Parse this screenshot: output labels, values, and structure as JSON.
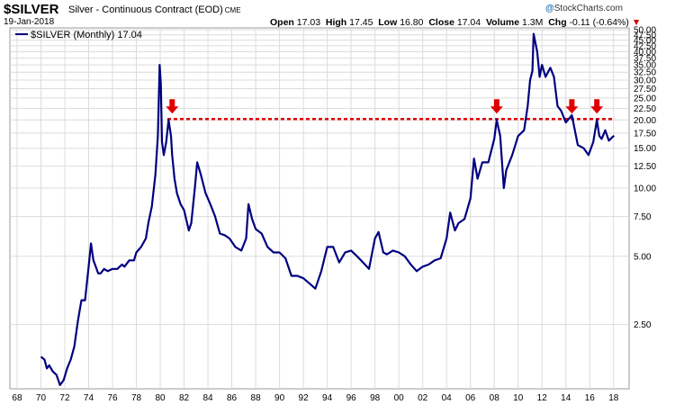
{
  "header": {
    "symbol": "$SILVER",
    "contract": "Silver - Continuous Contract (EOD)",
    "exchange": "CME",
    "date": "19-Jan-2018",
    "open_label": "Open",
    "open": "17.03",
    "high_label": "High",
    "high": "17.45",
    "low_label": "Low",
    "low": "16.80",
    "close_label": "Close",
    "close": "17.04",
    "volume_label": "Volume",
    "volume": "1.3M",
    "chg_label": "Chg",
    "chg": "-0.11 (-0.64%)",
    "brand_prefix": "@",
    "brand": "StockCharts.com",
    "chg_color": "#cc0000"
  },
  "chart_data": {
    "type": "line",
    "yscale": "log",
    "legend": "$SILVER (Monthly) 17.04",
    "legend_placement": "top-left",
    "x_ticks": [
      "68",
      "70",
      "72",
      "74",
      "76",
      "78",
      "80",
      "82",
      "84",
      "86",
      "88",
      "90",
      "92",
      "94",
      "96",
      "98",
      "00",
      "02",
      "04",
      "06",
      "08",
      "10",
      "12",
      "14",
      "16",
      "18"
    ],
    "x_range": [
      1967.4,
      2019.3
    ],
    "y_ticks": [
      "50.00",
      "47.50",
      "45.00",
      "42.50",
      "40.00",
      "37.50",
      "35.00",
      "32.50",
      "30.00",
      "27.50",
      "25.00",
      "22.50",
      "20.00",
      "17.50",
      "15.00",
      "12.50",
      "10.00",
      "7.50",
      "5.00",
      "2.50"
    ],
    "y_range": [
      1.3,
      51
    ],
    "grid": true,
    "series_color": "#000080",
    "resistance_level": 20.2,
    "resistance_color": "#e00000",
    "arrow_color": "#e00000",
    "arrows_x": [
      1981.0,
      2008.2,
      2014.5,
      2016.6
    ],
    "series": [
      {
        "name": "$SILVER",
        "x": [
          1970.0,
          1970.3,
          1970.5,
          1970.7,
          1971.0,
          1971.3,
          1971.6,
          1971.9,
          1972.2,
          1972.5,
          1972.8,
          1973.1,
          1973.4,
          1973.7,
          1974.0,
          1974.2,
          1974.4,
          1974.6,
          1974.8,
          1975.0,
          1975.3,
          1975.6,
          1976.0,
          1976.4,
          1976.8,
          1977.0,
          1977.4,
          1977.8,
          1978.0,
          1978.4,
          1978.8,
          1979.0,
          1979.3,
          1979.6,
          1979.8,
          1979.95,
          1980.05,
          1980.15,
          1980.3,
          1980.5,
          1980.7,
          1980.9,
          1981.0,
          1981.2,
          1981.4,
          1981.7,
          1982.0,
          1982.4,
          1982.6,
          1982.9,
          1983.1,
          1983.4,
          1983.8,
          1984.2,
          1984.6,
          1985.0,
          1985.4,
          1985.8,
          1986.3,
          1986.8,
          1987.2,
          1987.4,
          1987.7,
          1988.0,
          1988.5,
          1989.0,
          1989.5,
          1990.0,
          1990.5,
          1991.0,
          1991.5,
          1992.0,
          1992.5,
          1993.0,
          1993.5,
          1994.0,
          1994.5,
          1995.0,
          1995.5,
          1996.0,
          1996.5,
          1997.0,
          1997.5,
          1998.0,
          1998.3,
          1998.7,
          1999.0,
          1999.5,
          2000.0,
          2000.5,
          2001.0,
          2001.5,
          2002.0,
          2002.5,
          2003.0,
          2003.5,
          2004.0,
          2004.3,
          2004.7,
          2005.0,
          2005.5,
          2006.0,
          2006.3,
          2006.6,
          2007.0,
          2007.5,
          2008.0,
          2008.2,
          2008.5,
          2008.8,
          2009.0,
          2009.5,
          2010.0,
          2010.5,
          2010.8,
          2011.0,
          2011.2,
          2011.3,
          2011.6,
          2011.8,
          2012.0,
          2012.3,
          2012.7,
          2013.0,
          2013.3,
          2013.6,
          2014.0,
          2014.5,
          2015.0,
          2015.5,
          2015.9,
          2016.3,
          2016.6,
          2016.8,
          2017.0,
          2017.3,
          2017.6,
          2017.9,
          2018.05
        ],
        "values": [
          1.8,
          1.75,
          1.6,
          1.65,
          1.55,
          1.5,
          1.35,
          1.42,
          1.6,
          1.75,
          2.0,
          2.6,
          3.2,
          3.2,
          4.5,
          5.7,
          4.8,
          4.5,
          4.2,
          4.2,
          4.4,
          4.3,
          4.4,
          4.4,
          4.6,
          4.5,
          4.8,
          4.8,
          5.2,
          5.5,
          6.0,
          7.0,
          8.3,
          11.5,
          17.0,
          35.0,
          29.0,
          16.0,
          14.0,
          16.0,
          20.0,
          17.0,
          14.0,
          11.0,
          9.5,
          8.5,
          8.0,
          6.5,
          7.0,
          10.0,
          13.0,
          11.5,
          9.5,
          8.5,
          7.5,
          6.3,
          6.2,
          6.0,
          5.5,
          5.3,
          6.0,
          8.5,
          7.3,
          6.6,
          6.3,
          5.5,
          5.2,
          5.2,
          4.9,
          4.1,
          4.1,
          4.0,
          3.8,
          3.6,
          4.3,
          5.5,
          5.5,
          4.7,
          5.2,
          5.3,
          5.0,
          4.7,
          4.4,
          6.0,
          6.4,
          5.2,
          5.1,
          5.3,
          5.2,
          5.0,
          4.6,
          4.3,
          4.5,
          4.6,
          4.8,
          4.9,
          6.0,
          7.8,
          6.5,
          7.0,
          7.3,
          9.0,
          13.5,
          11.0,
          13.0,
          13.0,
          16.5,
          20.0,
          17.0,
          10.0,
          12.0,
          14.0,
          17.0,
          18.0,
          23.0,
          30.0,
          33.0,
          48.0,
          40.0,
          31.0,
          35.0,
          31.0,
          34.0,
          31.0,
          23.0,
          22.0,
          19.5,
          21.0,
          15.5,
          15.0,
          14.0,
          16.0,
          20.0,
          17.0,
          16.5,
          18.0,
          16.2,
          16.8,
          17.04
        ]
      }
    ]
  }
}
